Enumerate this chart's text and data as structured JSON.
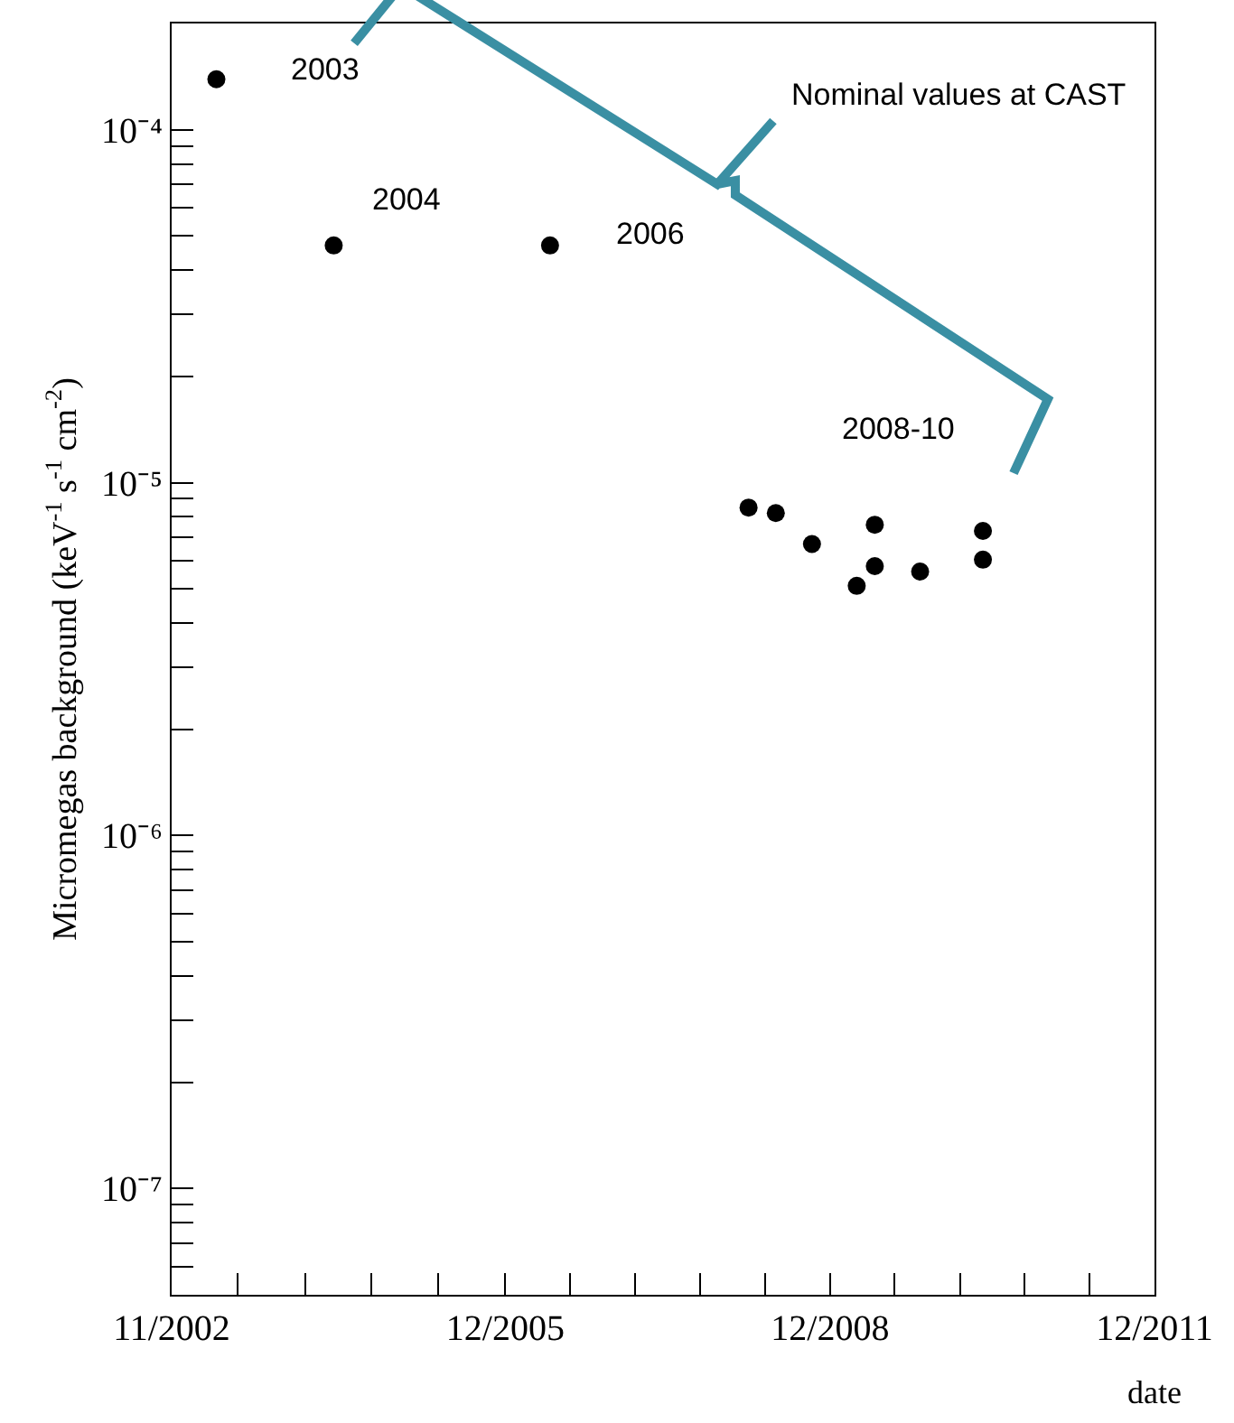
{
  "chart_data": {
    "type": "scatter",
    "xlabel": "date",
    "ylabel": "Micromegas background (keV$^{-1}$ s$^{-1}$ cm$^{-2}$)",
    "x": [
      "2003-04",
      "2004-05",
      "2006-05",
      "2008-03",
      "2008-06",
      "2008-10",
      "2009-05",
      "2009-03",
      "2009-05",
      "2009-10",
      "2010-05",
      "2010-05"
    ],
    "series": [
      {
        "color": "#000000",
        "values": [
          0.000139,
          4.7e-05,
          4.7e-05,
          8.5e-06,
          8.2e-06,
          6.7e-06,
          7.6e-06,
          5.1e-06,
          5.8e-06,
          5.6e-06,
          7.3e-06,
          6.05e-06
        ]
      }
    ],
    "xlim": [
      "2002-11-01",
      "2011-12-01"
    ],
    "xticks": [
      {
        "value": "2002-11-01",
        "label": "11/2002"
      },
      {
        "value": "2005-12-01",
        "label": "12/2005"
      },
      {
        "value": "2008-12-01",
        "label": "12/2008"
      },
      {
        "value": "2011-12-01",
        "label": "12/2011"
      },
      {
        "value": "2003-06-13",
        "label": null
      },
      {
        "value": "2004-01-25",
        "label": null
      },
      {
        "value": "2004-09-06",
        "label": null
      },
      {
        "value": "2005-04-19",
        "label": null
      },
      {
        "value": "2006-07-07",
        "label": null
      },
      {
        "value": "2007-02-13",
        "label": null
      },
      {
        "value": "2007-09-19",
        "label": null
      },
      {
        "value": "2008-04-25",
        "label": null
      },
      {
        "value": "2009-07-07",
        "label": null
      },
      {
        "value": "2010-02-13",
        "label": null
      },
      {
        "value": "2010-09-19",
        "label": null
      },
      {
        "value": "2011-04-25",
        "label": null
      }
    ],
    "ylim": [
      5e-08,
      0.0002
    ],
    "yticks": [
      {
        "value": 1e-07,
        "label": "10⁻⁷"
      },
      {
        "value": 1e-06,
        "label": "10⁻⁶"
      },
      {
        "value": 1e-05,
        "label": "10⁻⁵"
      },
      {
        "value": 0.0001,
        "label": "10⁻⁴"
      },
      {
        "value": 6e-08,
        "label": null
      },
      {
        "value": 7e-08,
        "label": null
      },
      {
        "value": 8e-08,
        "label": null
      },
      {
        "value": 9e-08,
        "label": null
      },
      {
        "value": 2e-07,
        "label": null
      },
      {
        "value": 3e-07,
        "label": null
      },
      {
        "value": 4e-07,
        "label": null
      },
      {
        "value": 5e-07,
        "label": null
      },
      {
        "value": 6e-07,
        "label": null
      },
      {
        "value": 7e-07,
        "label": null
      },
      {
        "value": 8e-07,
        "label": null
      },
      {
        "value": 9e-07,
        "label": null
      },
      {
        "value": 2e-06,
        "label": null
      },
      {
        "value": 3e-06,
        "label": null
      },
      {
        "value": 4e-06,
        "label": null
      },
      {
        "value": 5e-06,
        "label": null
      },
      {
        "value": 6e-06,
        "label": null
      },
      {
        "value": 7e-06,
        "label": null
      },
      {
        "value": 8e-06,
        "label": null
      },
      {
        "value": 9e-06,
        "label": null
      },
      {
        "value": 2e-05,
        "label": null
      },
      {
        "value": 3e-05,
        "label": null
      },
      {
        "value": 4e-05,
        "label": null
      },
      {
        "value": 5e-05,
        "label": null
      },
      {
        "value": 6e-05,
        "label": null
      },
      {
        "value": 7e-05,
        "label": null
      },
      {
        "value": 8e-05,
        "label": null
      },
      {
        "value": 9e-05,
        "label": null
      }
    ],
    "log": "y",
    "marker": "circle",
    "annotations": [
      "2003",
      "2004",
      "2006",
      "2008-10",
      "Nominal values at CAST"
    ]
  }
}
